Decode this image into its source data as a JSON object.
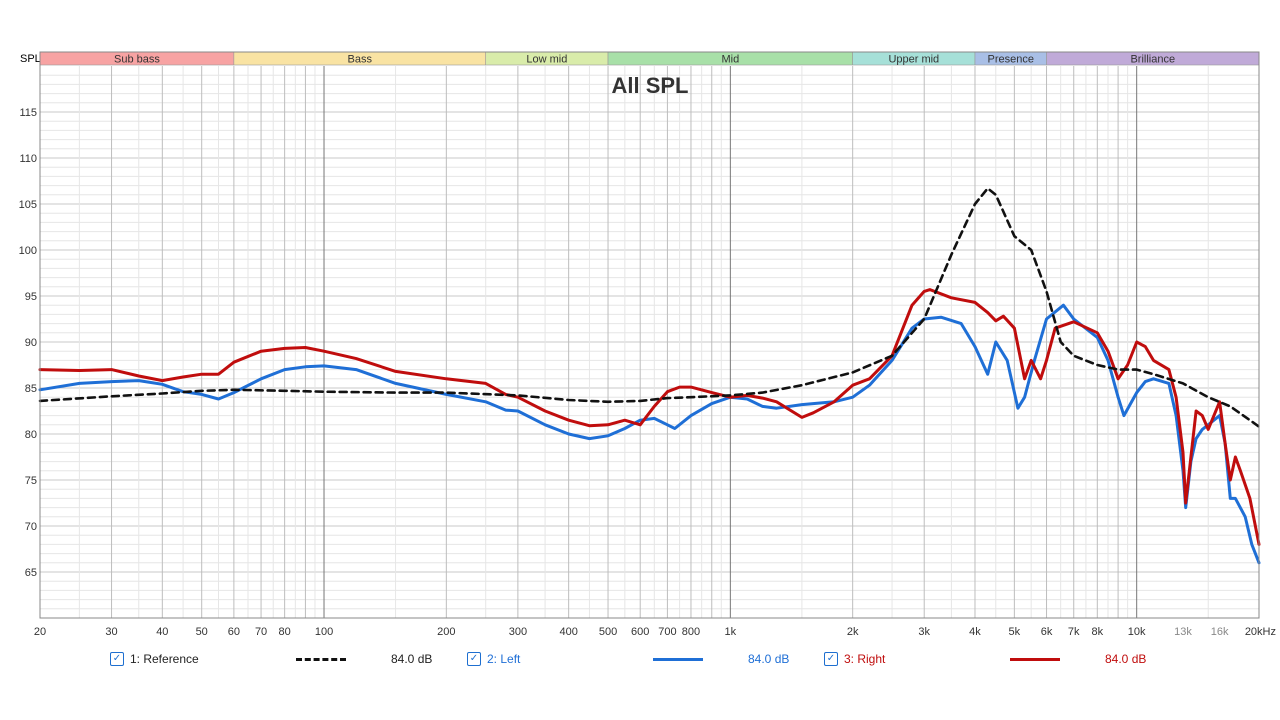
{
  "chart_data": {
    "type": "line",
    "title": "All SPL",
    "ylabel": "SPL",
    "xunit": "kHz",
    "xscale": "log",
    "xlim": [
      20,
      20000
    ],
    "ylim": [
      60,
      120
    ],
    "yticks": [
      65,
      70,
      75,
      80,
      85,
      90,
      95,
      100,
      105,
      110,
      115
    ],
    "xticks": [
      {
        "v": 20,
        "label": "20"
      },
      {
        "v": 30,
        "label": "30"
      },
      {
        "v": 40,
        "label": "40"
      },
      {
        "v": 50,
        "label": "50"
      },
      {
        "v": 60,
        "label": "60"
      },
      {
        "v": 70,
        "label": "70"
      },
      {
        "v": 80,
        "label": "80"
      },
      {
        "v": 100,
        "label": "100"
      },
      {
        "v": 200,
        "label": "200"
      },
      {
        "v": 300,
        "label": "300"
      },
      {
        "v": 400,
        "label": "400"
      },
      {
        "v": 500,
        "label": "500"
      },
      {
        "v": 600,
        "label": "600"
      },
      {
        "v": 700,
        "label": "700"
      },
      {
        "v": 800,
        "label": "800"
      },
      {
        "v": 1000,
        "label": "1k"
      },
      {
        "v": 2000,
        "label": "2k"
      },
      {
        "v": 3000,
        "label": "3k"
      },
      {
        "v": 4000,
        "label": "4k"
      },
      {
        "v": 5000,
        "label": "5k"
      },
      {
        "v": 6000,
        "label": "6k"
      },
      {
        "v": 7000,
        "label": "7k"
      },
      {
        "v": 8000,
        "label": "8k"
      },
      {
        "v": 10000,
        "label": "10k"
      },
      {
        "v": 13000,
        "label": "13k"
      },
      {
        "v": 16000,
        "label": "16k"
      },
      {
        "v": 20000,
        "label": "20kHz"
      }
    ],
    "bands": [
      {
        "name": "Sub bass",
        "from": 20,
        "to": 60,
        "color": "#f7a3a3"
      },
      {
        "name": "Bass",
        "from": 60,
        "to": 250,
        "color": "#f9e3a3"
      },
      {
        "name": "Low mid",
        "from": 250,
        "to": 500,
        "color": "#d9ecaa"
      },
      {
        "name": "Mid",
        "from": 500,
        "to": 2000,
        "color": "#a8e0a8"
      },
      {
        "name": "Upper mid",
        "from": 2000,
        "to": 4000,
        "color": "#a6e0d8"
      },
      {
        "name": "Presence",
        "from": 4000,
        "to": 6000,
        "color": "#a9bfe6"
      },
      {
        "name": "Brilliance",
        "from": 6000,
        "to": 20000,
        "color": "#c0aad8"
      }
    ],
    "grid": true,
    "legend_position": "bottom",
    "series": [
      {
        "name": "1: Reference",
        "level": "84.0 dB",
        "color": "#111111",
        "dash": true,
        "points": [
          [
            20,
            83.6
          ],
          [
            30,
            84.1
          ],
          [
            40,
            84.4
          ],
          [
            50,
            84.7
          ],
          [
            60,
            84.8
          ],
          [
            80,
            84.7
          ],
          [
            100,
            84.6
          ],
          [
            150,
            84.5
          ],
          [
            200,
            84.5
          ],
          [
            300,
            84.2
          ],
          [
            400,
            83.7
          ],
          [
            500,
            83.5
          ],
          [
            600,
            83.6
          ],
          [
            700,
            83.9
          ],
          [
            800,
            84.0
          ],
          [
            1000,
            84.2
          ],
          [
            1200,
            84.5
          ],
          [
            1500,
            85.3
          ],
          [
            2000,
            86.7
          ],
          [
            2500,
            88.5
          ],
          [
            3000,
            92.5
          ],
          [
            3500,
            99.5
          ],
          [
            4000,
            105.0
          ],
          [
            4300,
            106.7
          ],
          [
            4500,
            106.0
          ],
          [
            5000,
            101.5
          ],
          [
            5500,
            100.0
          ],
          [
            6000,
            95.5
          ],
          [
            6500,
            90.0
          ],
          [
            7000,
            88.5
          ],
          [
            8000,
            87.5
          ],
          [
            9000,
            87.0
          ],
          [
            10000,
            87.0
          ],
          [
            11000,
            86.5
          ],
          [
            13000,
            85.5
          ],
          [
            15000,
            84.0
          ],
          [
            17000,
            83.0
          ],
          [
            20000,
            80.8
          ]
        ]
      },
      {
        "name": "2: Left",
        "level": "84.0 dB",
        "color": "#1f6fd6",
        "dash": false,
        "points": [
          [
            20,
            84.8
          ],
          [
            25,
            85.5
          ],
          [
            30,
            85.7
          ],
          [
            35,
            85.8
          ],
          [
            40,
            85.4
          ],
          [
            45,
            84.6
          ],
          [
            50,
            84.3
          ],
          [
            55,
            83.8
          ],
          [
            60,
            84.5
          ],
          [
            70,
            86.0
          ],
          [
            80,
            87.0
          ],
          [
            90,
            87.3
          ],
          [
            100,
            87.4
          ],
          [
            120,
            87.0
          ],
          [
            150,
            85.5
          ],
          [
            200,
            84.3
          ],
          [
            250,
            83.5
          ],
          [
            280,
            82.6
          ],
          [
            300,
            82.5
          ],
          [
            350,
            81.0
          ],
          [
            400,
            80.0
          ],
          [
            450,
            79.5
          ],
          [
            500,
            79.8
          ],
          [
            550,
            80.6
          ],
          [
            600,
            81.5
          ],
          [
            650,
            81.7
          ],
          [
            700,
            81.0
          ],
          [
            730,
            80.6
          ],
          [
            800,
            82.0
          ],
          [
            900,
            83.3
          ],
          [
            1000,
            84.0
          ],
          [
            1100,
            83.8
          ],
          [
            1200,
            83.0
          ],
          [
            1300,
            82.8
          ],
          [
            1500,
            83.2
          ],
          [
            1800,
            83.5
          ],
          [
            2000,
            84.0
          ],
          [
            2200,
            85.3
          ],
          [
            2500,
            88.0
          ],
          [
            2800,
            91.5
          ],
          [
            3000,
            92.5
          ],
          [
            3300,
            92.7
          ],
          [
            3700,
            92.0
          ],
          [
            4000,
            89.5
          ],
          [
            4300,
            86.5
          ],
          [
            4500,
            90.0
          ],
          [
            4800,
            88.0
          ],
          [
            5100,
            82.8
          ],
          [
            5300,
            84.0
          ],
          [
            5600,
            88.0
          ],
          [
            6000,
            92.5
          ],
          [
            6600,
            94.0
          ],
          [
            7000,
            92.5
          ],
          [
            8000,
            90.5
          ],
          [
            8500,
            88.0
          ],
          [
            9000,
            84.0
          ],
          [
            9300,
            82.0
          ],
          [
            10000,
            84.5
          ],
          [
            10500,
            85.7
          ],
          [
            11000,
            86.0
          ],
          [
            12000,
            85.5
          ],
          [
            12500,
            82.0
          ],
          [
            13000,
            76.0
          ],
          [
            13200,
            72.0
          ],
          [
            13600,
            77.0
          ],
          [
            14000,
            79.5
          ],
          [
            14500,
            80.5
          ],
          [
            15000,
            81.0
          ],
          [
            16000,
            82.0
          ],
          [
            16500,
            79.0
          ],
          [
            17000,
            73.0
          ],
          [
            17500,
            73.0
          ],
          [
            18500,
            71.0
          ],
          [
            19200,
            68.0
          ],
          [
            20000,
            66.0
          ]
        ]
      },
      {
        "name": "3: Right",
        "level": "84.0 dB",
        "color": "#c00d0d",
        "dash": false,
        "points": [
          [
            20,
            87.0
          ],
          [
            25,
            86.9
          ],
          [
            30,
            87.0
          ],
          [
            35,
            86.3
          ],
          [
            40,
            85.8
          ],
          [
            45,
            86.2
          ],
          [
            50,
            86.5
          ],
          [
            55,
            86.5
          ],
          [
            60,
            87.8
          ],
          [
            70,
            89.0
          ],
          [
            80,
            89.3
          ],
          [
            90,
            89.4
          ],
          [
            100,
            89.0
          ],
          [
            120,
            88.2
          ],
          [
            150,
            86.8
          ],
          [
            200,
            86.0
          ],
          [
            250,
            85.5
          ],
          [
            280,
            84.3
          ],
          [
            300,
            84.0
          ],
          [
            350,
            82.5
          ],
          [
            400,
            81.5
          ],
          [
            450,
            80.9
          ],
          [
            500,
            81.0
          ],
          [
            550,
            81.5
          ],
          [
            600,
            81.0
          ],
          [
            650,
            83.0
          ],
          [
            700,
            84.6
          ],
          [
            750,
            85.1
          ],
          [
            800,
            85.1
          ],
          [
            900,
            84.5
          ],
          [
            1000,
            84.0
          ],
          [
            1100,
            84.2
          ],
          [
            1200,
            83.9
          ],
          [
            1300,
            83.5
          ],
          [
            1500,
            81.8
          ],
          [
            1600,
            82.3
          ],
          [
            1800,
            83.5
          ],
          [
            2000,
            85.3
          ],
          [
            2200,
            86.0
          ],
          [
            2500,
            88.5
          ],
          [
            2800,
            94.0
          ],
          [
            3000,
            95.5
          ],
          [
            3100,
            95.7
          ],
          [
            3500,
            94.8
          ],
          [
            4000,
            94.3
          ],
          [
            4300,
            93.2
          ],
          [
            4500,
            92.3
          ],
          [
            4700,
            92.8
          ],
          [
            5000,
            91.5
          ],
          [
            5300,
            86.0
          ],
          [
            5500,
            88.0
          ],
          [
            5800,
            86.0
          ],
          [
            6000,
            88.0
          ],
          [
            6300,
            91.5
          ],
          [
            7000,
            92.2
          ],
          [
            8000,
            91.0
          ],
          [
            8500,
            89.0
          ],
          [
            9000,
            86.0
          ],
          [
            9500,
            87.5
          ],
          [
            10000,
            90.0
          ],
          [
            10500,
            89.5
          ],
          [
            11000,
            88.0
          ],
          [
            12000,
            87.0
          ],
          [
            12500,
            84.0
          ],
          [
            13000,
            78.0
          ],
          [
            13200,
            72.5
          ],
          [
            13600,
            77.5
          ],
          [
            14000,
            82.5
          ],
          [
            14500,
            82.0
          ],
          [
            15000,
            80.5
          ],
          [
            16000,
            83.5
          ],
          [
            16500,
            79.0
          ],
          [
            17000,
            75.0
          ],
          [
            17500,
            77.5
          ],
          [
            18000,
            76.0
          ],
          [
            19000,
            73.0
          ],
          [
            20000,
            68.0
          ]
        ]
      }
    ]
  }
}
